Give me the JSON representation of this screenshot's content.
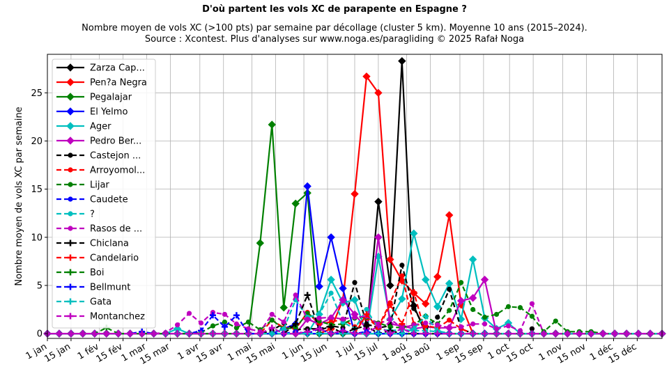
{
  "chart_data": {
    "type": "line",
    "title": "D'où partent les vols XC de parapente en Espagne ?",
    "subtitle_line1": "Nombre moyen de vols XC (>100 pts) par semaine par décollage (cluster 5 km). Moyenne 10 ans (2015–2024).",
    "subtitle_line2": "Source : Xcontest. Plus d'analyses sur www.noga.es/paragliding © 2025 Rafał Noga",
    "ylabel": "Nombre moyen de vols XC par semaine",
    "xlabel": "",
    "xlim": [
      1,
      53
    ],
    "ylim": [
      -0.5,
      29
    ],
    "y_ticks": [
      0,
      5,
      10,
      15,
      20,
      25
    ],
    "x_ticks": [
      {
        "pos": 1,
        "label": "1 jan"
      },
      {
        "pos": 3,
        "label": "15 jan"
      },
      {
        "pos": 5.4,
        "label": "1 fév"
      },
      {
        "pos": 7.4,
        "label": "15 fév"
      },
      {
        "pos": 9.4,
        "label": "1 mar"
      },
      {
        "pos": 11.4,
        "label": "15 mar"
      },
      {
        "pos": 13.9,
        "label": "1 avr"
      },
      {
        "pos": 15.9,
        "label": "15 avr"
      },
      {
        "pos": 18.3,
        "label": "1 mai"
      },
      {
        "pos": 20.3,
        "label": "15 mai"
      },
      {
        "pos": 22.7,
        "label": "1 jun"
      },
      {
        "pos": 24.7,
        "label": "15 jun"
      },
      {
        "pos": 27,
        "label": "1 jul"
      },
      {
        "pos": 29,
        "label": "15 jul"
      },
      {
        "pos": 31.4,
        "label": "1 aoû"
      },
      {
        "pos": 33.4,
        "label": "15 aoû"
      },
      {
        "pos": 35.9,
        "label": "1 sep"
      },
      {
        "pos": 37.9,
        "label": "15 sep"
      },
      {
        "pos": 40.1,
        "label": "1 oct"
      },
      {
        "pos": 42.1,
        "label": "15 oct"
      },
      {
        "pos": 44.6,
        "label": "1 nov"
      },
      {
        "pos": 46.6,
        "label": "15 nov"
      },
      {
        "pos": 48.9,
        "label": "1 déc"
      },
      {
        "pos": 50.9,
        "label": "15 déc"
      }
    ],
    "grid": true,
    "legend_position": "top-left",
    "series": [
      {
        "name": "Zarza Cap...",
        "color": "#000000",
        "dash": "solid",
        "marker": "diamond",
        "x": [
          1,
          21,
          29,
          30,
          31,
          32,
          33
        ],
        "y": [
          0,
          0,
          13.7,
          5,
          28.3,
          2.9,
          0
        ]
      },
      {
        "name": "Pen?a Negra",
        "color": "#ff0000",
        "dash": "solid",
        "marker": "diamond",
        "x": [
          1,
          25,
          26,
          27,
          28,
          29,
          30,
          31,
          32,
          33,
          34,
          35,
          36
        ],
        "y": [
          0,
          0.5,
          3.5,
          14.5,
          26.7,
          25,
          7.7,
          5.5,
          4.2,
          3.1,
          5.9,
          12.3,
          3
        ]
      },
      {
        "name": "Pegalajar",
        "color": "#008000",
        "dash": "solid",
        "marker": "diamond",
        "x": [
          1,
          18,
          19,
          20,
          21,
          22,
          23,
          24
        ],
        "y": [
          0,
          0,
          9.4,
          21.7,
          2.7,
          13.5,
          14.6,
          0
        ]
      },
      {
        "name": "El Yelmo",
        "color": "#0000ff",
        "dash": "solid",
        "marker": "diamond",
        "x": [
          1,
          20,
          21,
          22,
          23,
          24,
          25,
          26,
          27
        ],
        "y": [
          0,
          0,
          0.5,
          1,
          15.3,
          4.9,
          10,
          4.7,
          0
        ]
      },
      {
        "name": "Ager",
        "color": "#00bfbf",
        "dash": "solid",
        "marker": "diamond",
        "x": [
          1,
          11,
          12,
          24,
          25,
          26,
          27,
          29,
          30,
          31,
          32,
          33,
          34,
          35,
          36,
          37,
          38,
          39,
          40,
          41
        ],
        "y": [
          0,
          0,
          0.5,
          2,
          5.6,
          3.2,
          3.5,
          8,
          1.5,
          3.6,
          10.4,
          5.6,
          2.8,
          5.2,
          1.5,
          7.7,
          1.6,
          0.5,
          1.1,
          0
        ]
      },
      {
        "name": "Pedro Ber...",
        "color": "#bf00bf",
        "dash": "solid",
        "marker": "diamond",
        "x": [
          1,
          22,
          23,
          24,
          25,
          26,
          27,
          28,
          29,
          30,
          31,
          32,
          33,
          34,
          35,
          36,
          37,
          38,
          39
        ],
        "y": [
          0,
          0,
          1.5,
          1,
          1.6,
          3.5,
          2,
          0.5,
          10,
          1,
          0.8,
          0.5,
          0.7,
          0.6,
          0.6,
          3.4,
          3.7,
          5.6,
          0
        ]
      },
      {
        "name": "Castejon ...",
        "color": "#000000",
        "dash": "dashed",
        "marker": "circle",
        "x": [
          1,
          20,
          21,
          22,
          23,
          24,
          25,
          26,
          27,
          28,
          29,
          30,
          31,
          32,
          33,
          34,
          35,
          36,
          37
        ],
        "y": [
          0,
          0.3,
          1.1,
          0.4,
          0.5,
          0.5,
          0.8,
          0.6,
          5.3,
          1,
          0.6,
          0.8,
          7.1,
          2.6,
          0.5,
          1.7,
          4.6,
          0.5,
          0
        ],
        "extra_x": [
          42
        ],
        "extra_y": [
          0.5
        ]
      },
      {
        "name": "Arroyomol...",
        "color": "#ff0000",
        "dash": "dashed",
        "marker": "circle",
        "x": [
          1,
          19,
          20,
          21,
          22,
          23,
          24,
          25,
          26,
          27,
          28,
          29,
          30,
          31,
          32,
          33,
          34,
          35,
          36,
          37
        ],
        "y": [
          0,
          0,
          1.4,
          0.6,
          0.5,
          2.2,
          1,
          1.2,
          1.5,
          0.7,
          1.6,
          0.7,
          3.2,
          6,
          1,
          0.8,
          0.6,
          1.4,
          0.5,
          0
        ]
      },
      {
        "name": "Lijar",
        "color": "#008000",
        "dash": "dashed",
        "marker": "circle",
        "x": [
          1,
          13,
          14,
          15,
          16,
          17,
          18,
          19,
          20,
          21,
          22,
          23,
          24,
          25,
          26,
          27,
          28,
          29,
          30,
          31,
          32,
          33,
          34,
          35,
          36,
          37,
          38,
          39,
          40,
          41,
          42,
          43,
          44,
          45,
          46,
          47,
          48
        ],
        "y": [
          0,
          0,
          0.1,
          0.8,
          1.2,
          0.6,
          1.2,
          0.4,
          1.4,
          0.5,
          0.6,
          2.1,
          1.3,
          0.9,
          1,
          1.6,
          1.7,
          1.1,
          0.7,
          0.6,
          0.9,
          1.8,
          1,
          2.4,
          5.3,
          2.5,
          1.7,
          2,
          2.8,
          2.7,
          1.8,
          0.2,
          1.3,
          0.2,
          0.2,
          0.2,
          0
        ]
      },
      {
        "name": "Caudete",
        "color": "#0000ff",
        "dash": "dashed",
        "marker": "circle",
        "x": [
          1,
          20,
          22,
          24,
          26,
          28,
          30
        ],
        "y": [
          0,
          0,
          0.2,
          0.5,
          0.3,
          0.2,
          0
        ]
      },
      {
        "name": "?",
        "color": "#00bfbf",
        "dash": "dashed",
        "marker": "circle",
        "x": [
          1,
          20,
          21,
          22,
          23,
          24,
          25,
          26,
          27,
          28,
          29,
          30,
          31,
          32,
          33,
          34,
          35
        ],
        "y": [
          0,
          0,
          0.5,
          3.5,
          1.7,
          2,
          4.2,
          1.2,
          0.5,
          2.5,
          0.5,
          0.3,
          0.4,
          0.3,
          0.3,
          0.2,
          0
        ]
      },
      {
        "name": "Rasos de ...",
        "color": "#bf00bf",
        "dash": "dashed",
        "marker": "circle",
        "x": [
          1,
          10,
          11,
          12,
          13,
          14,
          15,
          16,
          17,
          18,
          19,
          20,
          21,
          22,
          23,
          24,
          25,
          26,
          27,
          28,
          29,
          30,
          31,
          32,
          33,
          34,
          35,
          36,
          37,
          38,
          39,
          40,
          41,
          42,
          43
        ],
        "y": [
          0,
          0,
          0.1,
          0.9,
          2.1,
          1.1,
          2.2,
          2,
          1,
          0.5,
          0.2,
          2,
          1.2,
          4,
          1.5,
          1.6,
          1.7,
          1.5,
          1.7,
          1.8,
          1,
          1.5,
          0.6,
          0.9,
          1.1,
          0.9,
          0.6,
          0.7,
          1,
          1,
          0.5,
          0.8,
          0.3,
          3.1,
          0
        ]
      },
      {
        "name": "Chiclana",
        "color": "#000000",
        "dash": "dashed",
        "marker": "plus",
        "x": [
          1,
          20,
          22,
          23,
          24,
          25,
          27,
          28,
          30,
          32
        ],
        "y": [
          0,
          0,
          1,
          4,
          0.4,
          0.7,
          0.5,
          0.8,
          0.3,
          0
        ]
      },
      {
        "name": "Candelario",
        "color": "#ff0000",
        "dash": "dashed",
        "marker": "plus",
        "x": [
          1,
          27,
          28,
          29,
          30,
          31,
          32,
          33
        ],
        "y": [
          0,
          0,
          2,
          0.5,
          3,
          1,
          4.3,
          0
        ]
      },
      {
        "name": "Boi",
        "color": "#008000",
        "dash": "dashed",
        "marker": "plus",
        "x": [
          1,
          5,
          6,
          7,
          30
        ],
        "y": [
          0,
          0,
          0.6,
          0,
          0
        ]
      },
      {
        "name": "Bellmunt",
        "color": "#0000ff",
        "dash": "dashed",
        "marker": "plus",
        "x": [
          1,
          8,
          9,
          10,
          13,
          14,
          15,
          16,
          17,
          18
        ],
        "y": [
          0,
          0,
          0.2,
          0,
          0,
          0.3,
          1.9,
          0.7,
          1.9,
          0
        ]
      },
      {
        "name": "Gata",
        "color": "#00bfbf",
        "dash": "dashed",
        "marker": "plus",
        "x": [
          1,
          31,
          32,
          33,
          34,
          35
        ],
        "y": [
          0,
          0,
          0.5,
          1.8,
          0.3,
          0
        ]
      },
      {
        "name": "Montanchez",
        "color": "#bf00bf",
        "dash": "dashed",
        "marker": "plus",
        "x": [
          1,
          19,
          20,
          23,
          24,
          26,
          29,
          31,
          33
        ],
        "y": [
          0,
          0,
          0.6,
          0.2,
          0.5,
          0.3,
          0.8,
          0.5,
          0
        ]
      }
    ]
  }
}
